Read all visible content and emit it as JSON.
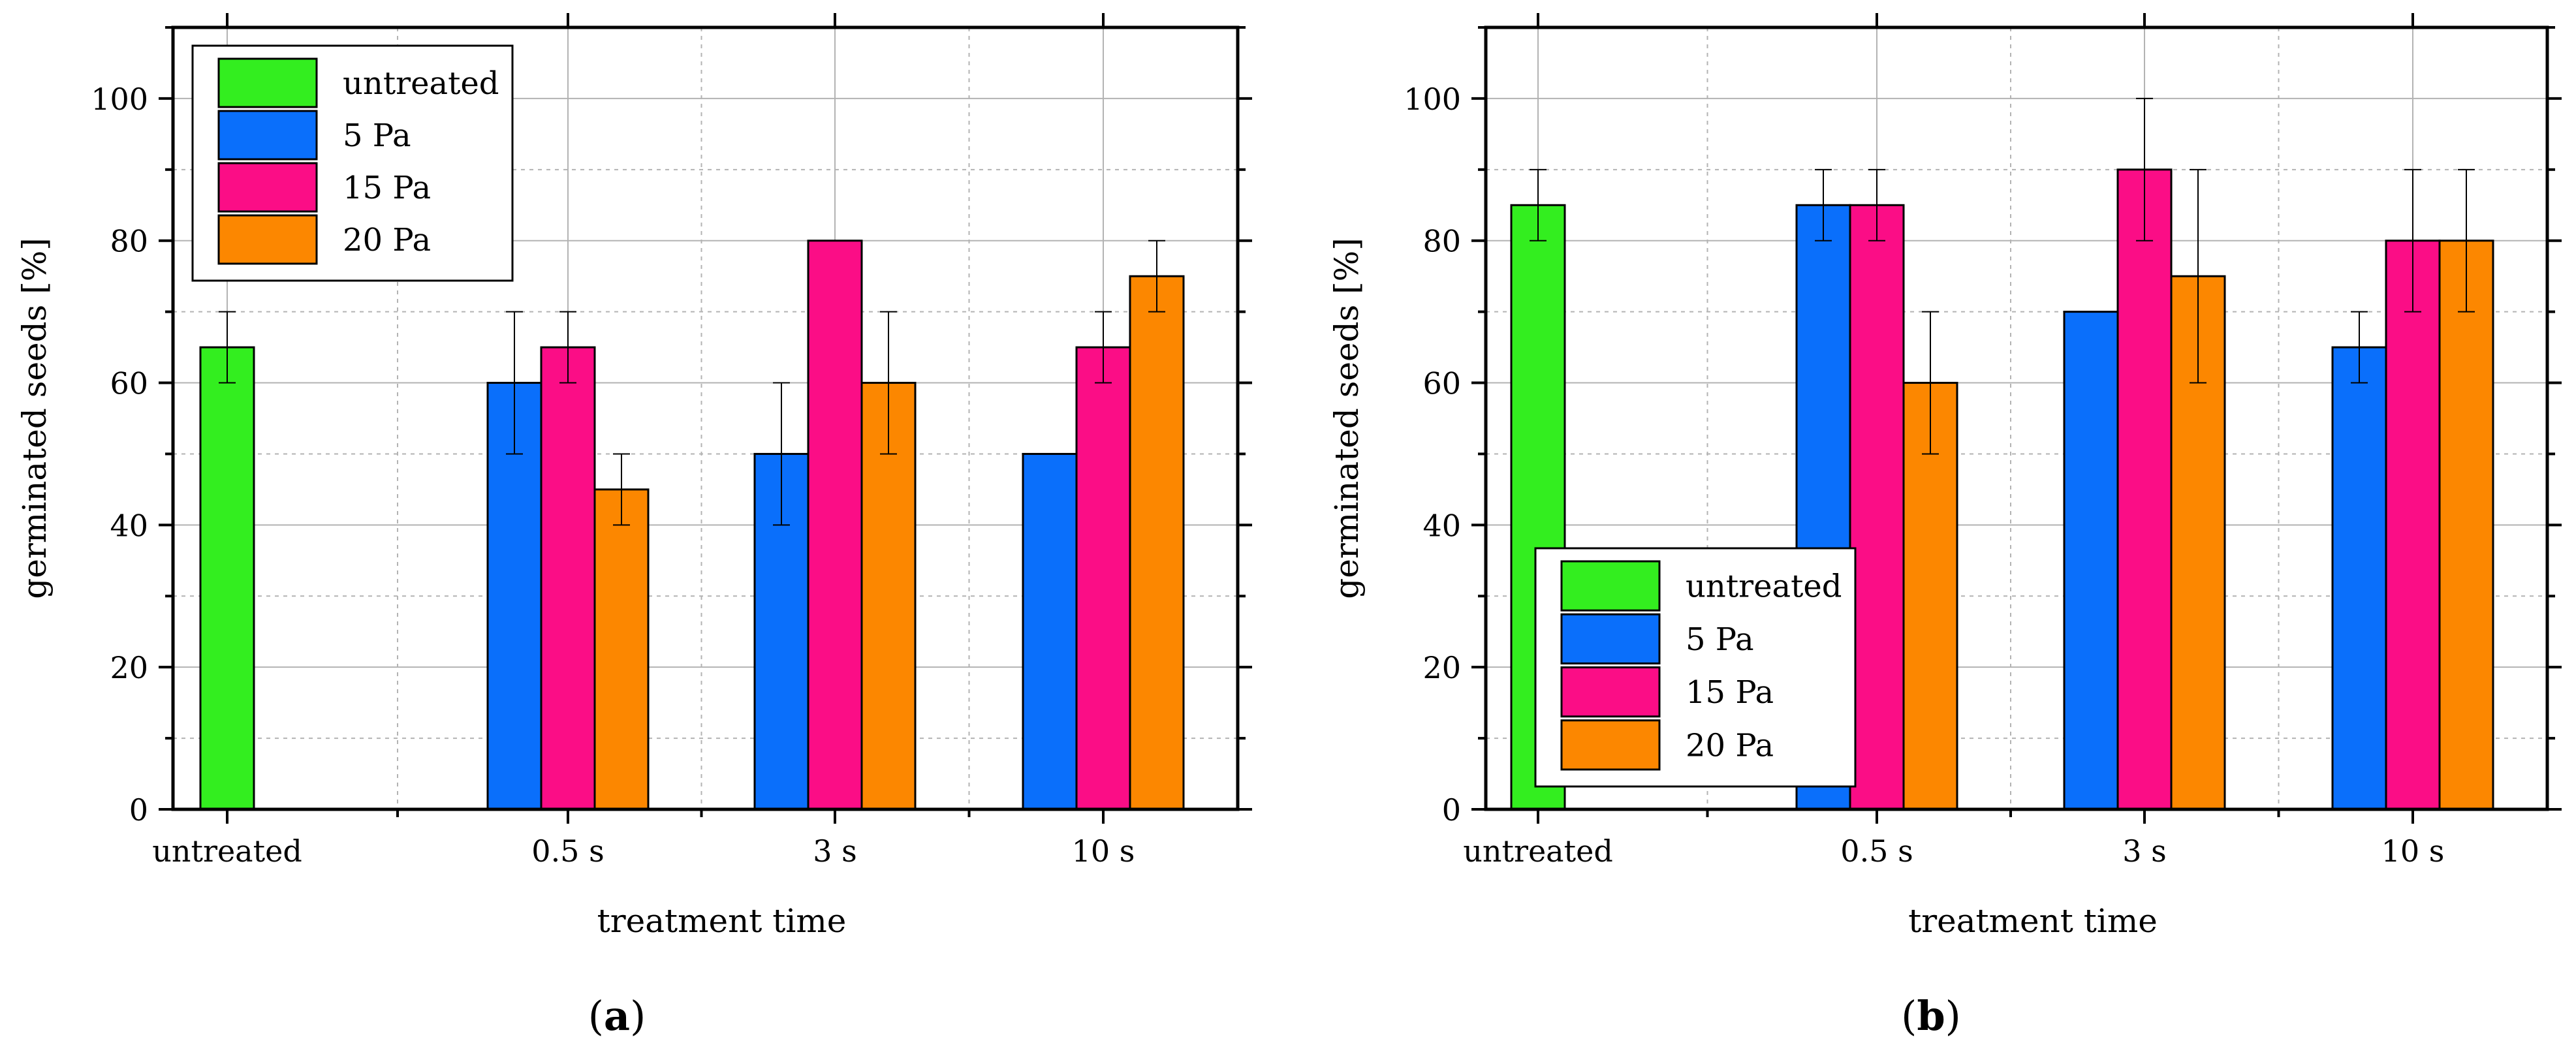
{
  "colors": {
    "untreated": "#33ee1f",
    "5 Pa": "#0a6ffb",
    "15 Pa": "#fb0d86",
    "20 Pa": "#fc8700",
    "grid": "#b3b3b3",
    "axis": "#000000"
  },
  "chart_data": [
    {
      "type": "bar",
      "panel_label": "(a)",
      "panel_label_letter": "a",
      "paren_open": "(",
      "paren_close": ")",
      "xlabel": "treatment time",
      "ylabel": "germinated seeds [%]",
      "ylim": [
        0,
        110
      ],
      "yticks": [
        0,
        20,
        40,
        60,
        80,
        100
      ],
      "categories": [
        "untreated",
        "0.5 s",
        "3 s",
        "10 s"
      ],
      "grid": true,
      "legend_position": "top-left",
      "legend": [
        "untreated",
        "5 Pa",
        "15 Pa",
        "20 Pa"
      ],
      "bars": [
        {
          "category": "untreated",
          "series": "untreated",
          "value": 65,
          "err": 5
        },
        {
          "category": "0.5 s",
          "series": "5 Pa",
          "value": 60,
          "err": 10
        },
        {
          "category": "0.5 s",
          "series": "15 Pa",
          "value": 65,
          "err": 5
        },
        {
          "category": "0.5 s",
          "series": "20 Pa",
          "value": 45,
          "err": 5
        },
        {
          "category": "3 s",
          "series": "5 Pa",
          "value": 50,
          "err": 10
        },
        {
          "category": "3 s",
          "series": "15 Pa",
          "value": 80,
          "err": 0
        },
        {
          "category": "3 s",
          "series": "20 Pa",
          "value": 60,
          "err": 10
        },
        {
          "category": "10 s",
          "series": "5 Pa",
          "value": 50,
          "err": 0
        },
        {
          "category": "10 s",
          "series": "15 Pa",
          "value": 65,
          "err": 5
        },
        {
          "category": "10 s",
          "series": "20 Pa",
          "value": 75,
          "err": 5
        }
      ]
    },
    {
      "type": "bar",
      "panel_label": "(b)",
      "panel_label_letter": "b",
      "paren_open": "(",
      "paren_close": ")",
      "xlabel": "treatment time",
      "ylabel": "germinated seeds [%]",
      "ylim": [
        0,
        110
      ],
      "yticks": [
        0,
        20,
        40,
        60,
        80,
        100
      ],
      "categories": [
        "untreated",
        "0.5 s",
        "3 s",
        "10 s"
      ],
      "grid": true,
      "legend_position": "bottom-left",
      "legend": [
        "untreated",
        "5 Pa",
        "15 Pa",
        "20 Pa"
      ],
      "bars": [
        {
          "category": "untreated",
          "series": "untreated",
          "value": 85,
          "err": 5
        },
        {
          "category": "0.5 s",
          "series": "5 Pa",
          "value": 85,
          "err": 5
        },
        {
          "category": "0.5 s",
          "series": "15 Pa",
          "value": 85,
          "err": 5
        },
        {
          "category": "0.5 s",
          "series": "20 Pa",
          "value": 60,
          "err": 10
        },
        {
          "category": "3 s",
          "series": "5 Pa",
          "value": 70,
          "err": 0
        },
        {
          "category": "3 s",
          "series": "15 Pa",
          "value": 90,
          "err": 10
        },
        {
          "category": "3 s",
          "series": "20 Pa",
          "value": 75,
          "err": 15
        },
        {
          "category": "10 s",
          "series": "5 Pa",
          "value": 65,
          "err": 5
        },
        {
          "category": "10 s",
          "series": "15 Pa",
          "value": 80,
          "err": 10
        },
        {
          "category": "10 s",
          "series": "20 Pa",
          "value": 80,
          "err": 10
        }
      ]
    }
  ]
}
